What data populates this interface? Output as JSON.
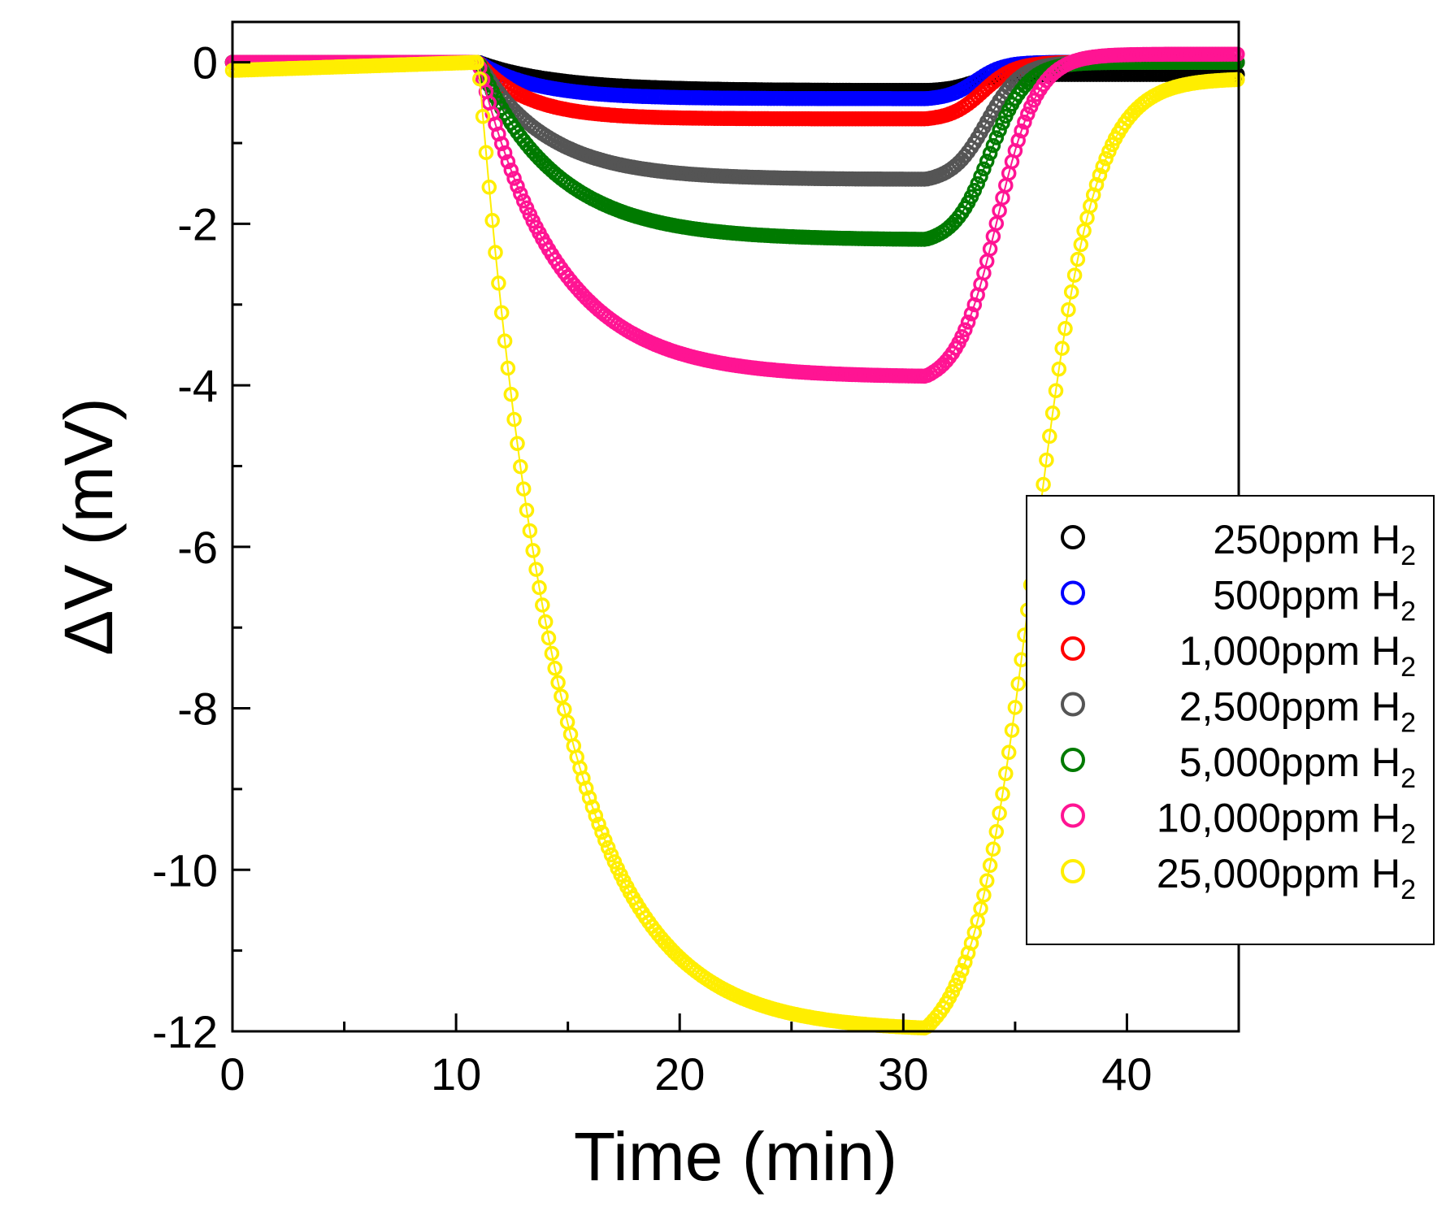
{
  "chart_data": {
    "type": "scatter",
    "title": "",
    "xlabel": "Time (min)",
    "ylabel": "ΔV (mV)",
    "xlim": [
      0,
      45
    ],
    "ylim": [
      -12,
      0.5
    ],
    "xticks": [
      0,
      10,
      20,
      30,
      40
    ],
    "yticks": [
      0,
      -2,
      -4,
      -6,
      -8,
      -10,
      -12
    ],
    "grid": false,
    "legend_position": "right",
    "marker": "open-circle",
    "gas_on_min": 11,
    "gas_off_min": 31,
    "series": [
      {
        "name": "250ppm H",
        "subscript": "2",
        "color": "#000000",
        "baseline": 0.0,
        "plateau": -0.35,
        "tau_on": 4,
        "tau_off": 1.3,
        "post_level": -0.15
      },
      {
        "name": "500ppm H",
        "subscript": "2",
        "color": "#0000ff",
        "baseline": 0.0,
        "plateau": -0.45,
        "tau_on": 3,
        "tau_off": 1.4,
        "post_level": 0.0
      },
      {
        "name": "1,000ppm H",
        "subscript": "2",
        "color": "#ff0000",
        "baseline": 0.0,
        "plateau": -0.7,
        "tau_on": 2.5,
        "tau_off": 1.6,
        "post_level": 0.0
      },
      {
        "name": "2,500ppm H",
        "subscript": "2",
        "color": "#555555",
        "baseline": 0.0,
        "plateau": -1.45,
        "tau_on": 3.5,
        "tau_off": 1.7,
        "post_level": 0.0
      },
      {
        "name": "5,000ppm H",
        "subscript": "2",
        "color": "#007a00",
        "baseline": 0.0,
        "plateau": -2.2,
        "tau_on": 4,
        "tau_off": 1.8,
        "post_level": 0.0
      },
      {
        "name": "10,000ppm H",
        "subscript": "2",
        "color": "#ff1493",
        "baseline": 0.0,
        "plateau": -3.9,
        "tau_on": 4,
        "tau_off": 2.0,
        "post_level": 0.1
      },
      {
        "name": "25,000ppm H",
        "subscript": "2",
        "color": "#ffee00",
        "baseline": -0.1,
        "plateau": -12.0,
        "tau_on": 4,
        "tau_off": 3.0,
        "post_level": -0.2
      }
    ]
  }
}
